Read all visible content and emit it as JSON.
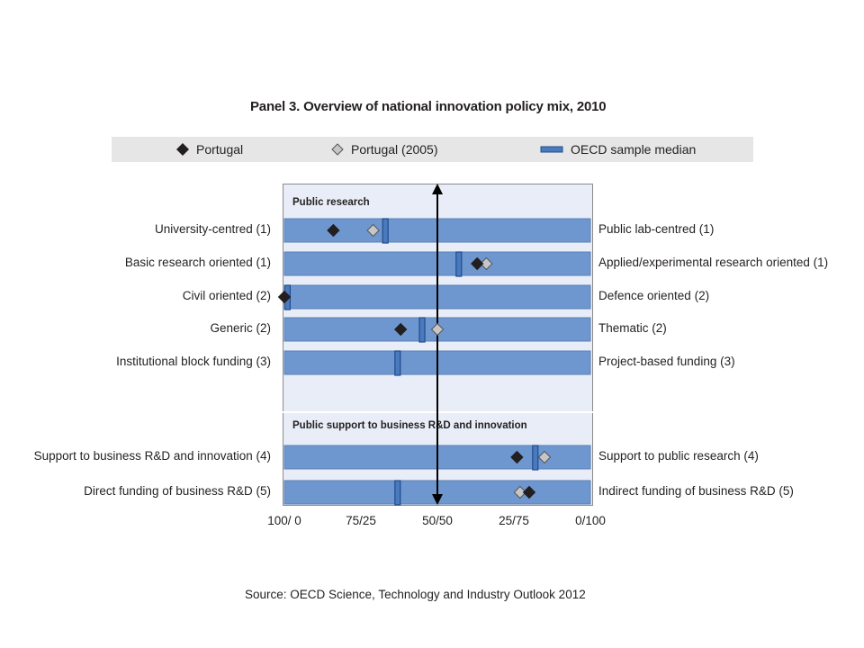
{
  "title": "Panel 3. Overview of national innovation policy mix, 2010",
  "legend": {
    "items": [
      {
        "label": "Portugal",
        "marker": "diamond-black"
      },
      {
        "label": "Portugal (2005)",
        "marker": "diamond-grey"
      },
      {
        "label": "OECD sample median",
        "marker": "bar-blue"
      }
    ]
  },
  "sections": [
    {
      "title": "Public research"
    },
    {
      "title": "Public support to business R&D and innovation"
    }
  ],
  "source": "Source: OECD Science, Technology and Industry Outlook 2012",
  "colors": {
    "bar": "#6f97cf",
    "panel": "#e8edf7",
    "median": "#4a79be",
    "portugal": "#231f20",
    "portugal_2005": "#c6c6c6"
  },
  "chart_data": {
    "type": "dot-range",
    "title": "Panel 3. Overview of national innovation policy mix, 2010",
    "x_ticks": [
      "100/ 0",
      "75/25",
      "50/50",
      "25/75",
      "0/100"
    ],
    "xlim": [
      0,
      100
    ],
    "center_line": 50,
    "rows": [
      {
        "left": "University-centred (1)",
        "right": "Public lab-centred (1)",
        "section": 0,
        "portugal": 16,
        "portugal_2005": 29,
        "median": 33
      },
      {
        "left": "Basic research oriented (1)",
        "right": "Applied/experimental research oriented (1)",
        "section": 0,
        "portugal": 63,
        "portugal_2005": 66,
        "median": 57
      },
      {
        "left": "Civil oriented (2)",
        "right": "Defence oriented (2)",
        "section": 0,
        "portugal": 0,
        "portugal_2005": null,
        "median": 1
      },
      {
        "left": "Generic (2)",
        "right": "Thematic (2)",
        "section": 0,
        "portugal": 38,
        "portugal_2005": 50,
        "median": 45
      },
      {
        "left": "Institutional block funding (3)",
        "right": "Project-based funding (3)",
        "section": 0,
        "portugal": null,
        "portugal_2005": null,
        "median": 37
      },
      {
        "left": "Support to business R&D and innovation (4)",
        "right": "Support to public research (4)",
        "section": 1,
        "portugal": 76,
        "portugal_2005": 85,
        "median": 82
      },
      {
        "left": "Direct funding of business R&D (5)",
        "right": "Indirect funding of business R&D (5)",
        "section": 1,
        "portugal": 80,
        "portugal_2005": 77,
        "median": 37
      }
    ]
  }
}
